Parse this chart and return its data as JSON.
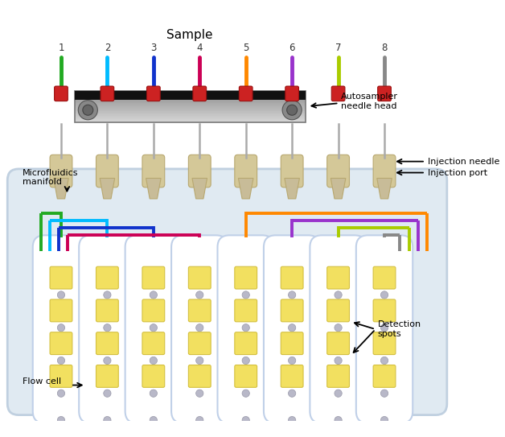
{
  "title": "Sample",
  "sample_numbers": [
    "1",
    "2",
    "3",
    "4",
    "5",
    "6",
    "7",
    "8"
  ],
  "tube_colors": [
    "#22aa22",
    "#00bbff",
    "#1133cc",
    "#cc0055",
    "#ff8800",
    "#9933cc",
    "#aacc00",
    "#888888"
  ],
  "channel_colors": [
    "#22aa22",
    "#00bbff",
    "#1133cc",
    "#cc0055",
    "#ff8800",
    "#9933cc",
    "#aacc00",
    "#888888"
  ],
  "labels": {
    "autosampler": "Autosampler\nneedle head",
    "injection_needle": "Injection needle",
    "injection_port": "Injection port",
    "microfluidics": "Microfluidics\nmanifold",
    "detection_spots": "Detection\nspots",
    "flow_cell": "Flow cell"
  },
  "plate_color": "#e0eaf2",
  "plate_edge": "#c0d0e0",
  "channel_fill": "#ffffff",
  "channel_edge": "#c0d0e8",
  "spot_color": "#f2e060",
  "spot_edge": "#d4c040",
  "needle_body_color": "#d4c898",
  "needle_edge_color": "#b8a870",
  "head_screw_color": "#909090",
  "connector_red": "#cc2222"
}
